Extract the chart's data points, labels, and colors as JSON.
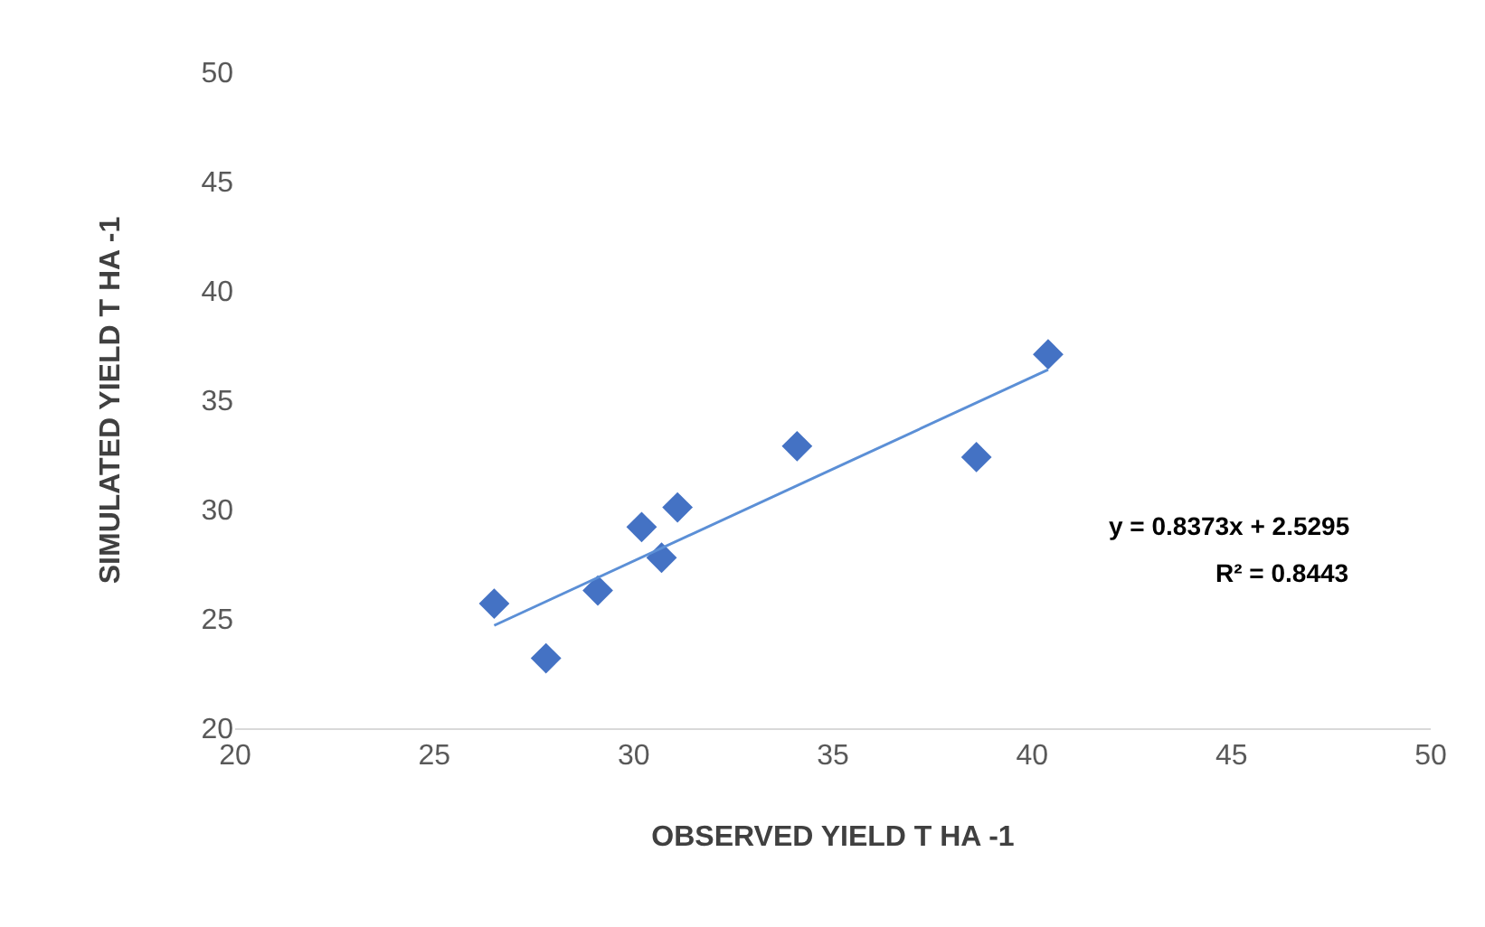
{
  "chart_data": {
    "type": "scatter",
    "xlabel": "OBSERVED YIELD T HA -1",
    "ylabel": "SIMULATED YIELD T HA -1",
    "x": [
      26.5,
      27.8,
      29.1,
      30.2,
      30.7,
      31.1,
      34.1,
      38.6,
      40.4
    ],
    "series": [
      {
        "color": "#4472c4",
        "marker": "diamond",
        "values": [
          25.7,
          23.2,
          26.3,
          29.2,
          27.8,
          30.1,
          32.9,
          32.4,
          37.1
        ]
      },
      {
        "type": "line",
        "color": "#5b8fd6",
        "marker": "none",
        "x": [
          26.5,
          40.4
        ],
        "values": [
          24.7,
          36.4
        ]
      }
    ],
    "line_style": "solid",
    "xlim": [
      20,
      50
    ],
    "xticks": [
      20,
      25,
      30,
      35,
      40,
      45,
      50
    ],
    "ylim": [
      20,
      50
    ],
    "yticks": [
      20,
      25,
      30,
      35,
      40,
      45,
      50
    ],
    "grid": false,
    "annotations": [
      "y = 0.8373x + 2.5295",
      "R² = 0.8443"
    ]
  }
}
